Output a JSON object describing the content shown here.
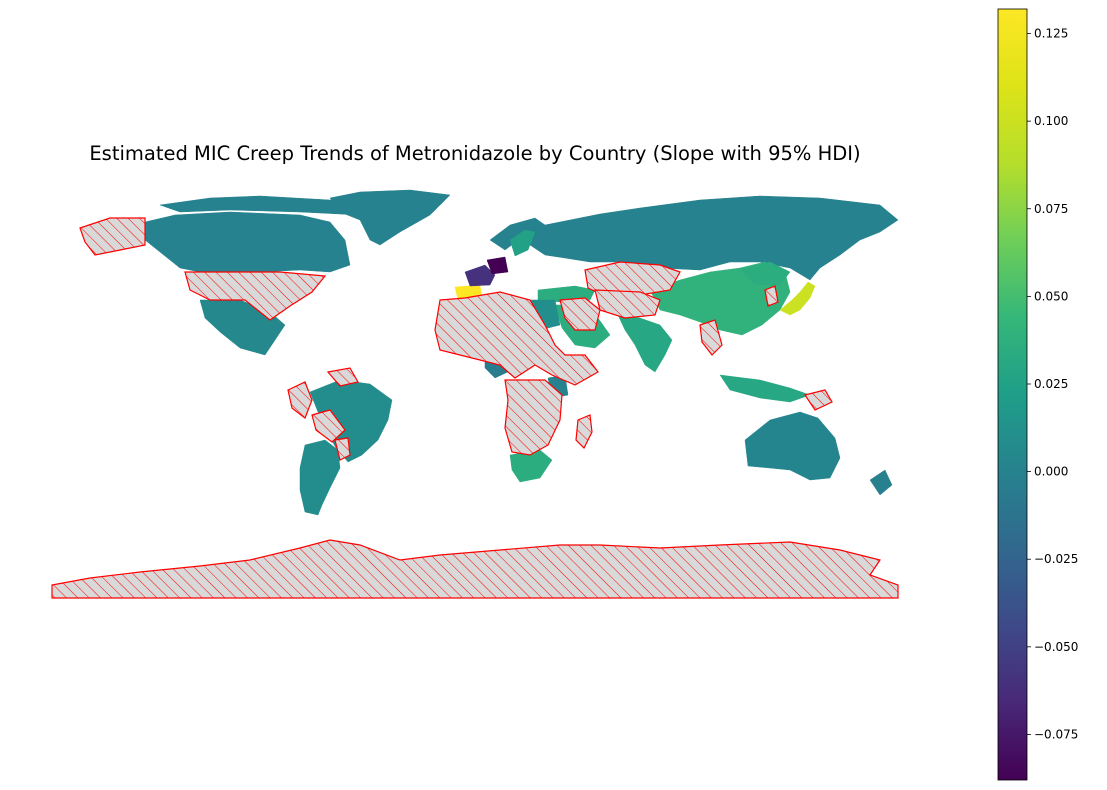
{
  "title": "Estimated MIC Creep Trends of Metronidazole by Country (Slope with 95% HDI)",
  "colors": {
    "no_data_fill": "#d9d9d9",
    "no_data_edge": "#ff0000",
    "background": "#ffffff"
  },
  "colorbar": {
    "colormap": "viridis",
    "vmin": -0.088,
    "vmax": 0.132,
    "ticks": [
      {
        "value": 0.125,
        "label": "0.125"
      },
      {
        "value": 0.1,
        "label": "0.100"
      },
      {
        "value": 0.075,
        "label": "0.075"
      },
      {
        "value": 0.05,
        "label": "0.050"
      },
      {
        "value": 0.025,
        "label": "0.025"
      },
      {
        "value": 0.0,
        "label": "0.000"
      },
      {
        "value": -0.025,
        "label": "−0.025"
      },
      {
        "value": -0.05,
        "label": "−0.050"
      },
      {
        "value": -0.075,
        "label": "−0.075"
      }
    ]
  },
  "regions": [
    {
      "name": "Canada",
      "slope": 0.0
    },
    {
      "name": "Greenland",
      "slope": 0.0
    },
    {
      "name": "Russia",
      "slope": 0.0
    },
    {
      "name": "Mexico",
      "slope": 0.005
    },
    {
      "name": "Brazil",
      "slope": 0.008
    },
    {
      "name": "Argentina",
      "slope": 0.008
    },
    {
      "name": "Australia",
      "slope": 0.002
    },
    {
      "name": "China",
      "slope": 0.04
    },
    {
      "name": "India",
      "slope": 0.03
    },
    {
      "name": "Saudi Arabia",
      "slope": 0.035
    },
    {
      "name": "Turkey",
      "slope": 0.035
    },
    {
      "name": "Japan",
      "slope": 0.1
    },
    {
      "name": "Spain",
      "slope": 0.132
    },
    {
      "name": "France",
      "slope": -0.06
    },
    {
      "name": "Germany",
      "slope": -0.088
    },
    {
      "name": "Norway",
      "slope": 0.0
    },
    {
      "name": "Sweden",
      "slope": 0.025
    },
    {
      "name": "Indonesia",
      "slope": 0.03
    },
    {
      "name": "South Africa",
      "slope": 0.035
    },
    {
      "name": "Egypt",
      "slope": 0.01
    },
    {
      "name": "Nigeria",
      "slope": -0.005
    },
    {
      "name": "Kenya",
      "slope": 0.0
    },
    {
      "name": "Mongolia",
      "slope": 0.035
    },
    {
      "name": "New Zealand",
      "slope": -0.002
    }
  ],
  "no_data_regions": [
    "Alaska",
    "United States",
    "Peru",
    "Bolivia",
    "Paraguay",
    "Venezuela",
    "North & Central Africa",
    "Madagascar",
    "Southern Africa",
    "Kazakhstan",
    "Central Asia",
    "Middle East",
    "Myanmar",
    "Korea",
    "Papua New Guinea",
    "Antarctica"
  ]
}
